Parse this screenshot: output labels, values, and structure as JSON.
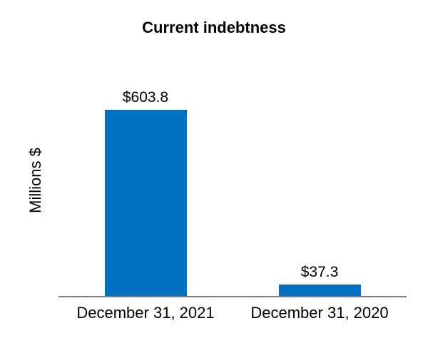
{
  "chart_data": {
    "type": "bar",
    "title": "Current indebtness",
    "ylabel": "Millions $",
    "xlabel": "",
    "categories": [
      "December 31, 2021",
      "December 31, 2020"
    ],
    "values": [
      603.8,
      37.3
    ],
    "value_labels": [
      "$603.8",
      "$37.3"
    ],
    "ylim": [
      0,
      650
    ],
    "grid": false,
    "legend": false,
    "bar_color": "#0070C0",
    "axis_color": "#808080",
    "text_color": "#000000",
    "background_color": "#FFFFFF"
  }
}
